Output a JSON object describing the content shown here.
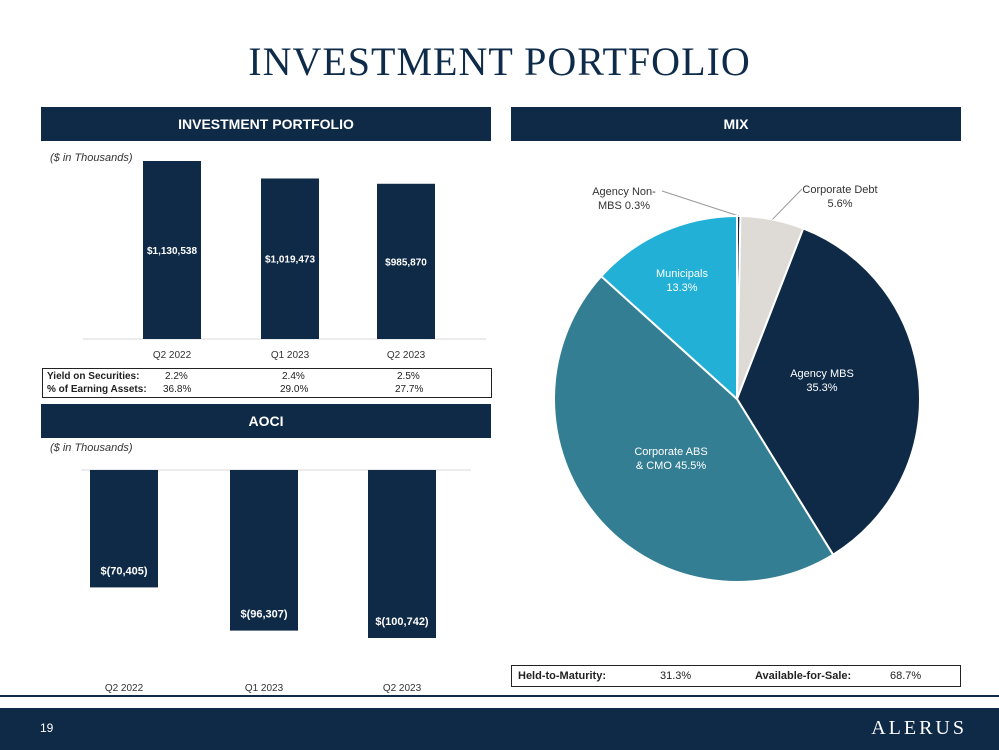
{
  "title": "INVESTMENT PORTFOLIO",
  "portfolio_header": "INVESTMENT PORTFOLIO",
  "mix_header": "MIX",
  "aoci_header": "AOCI",
  "unit_note_portfolio": "($ in Thousands)",
  "unit_note_aoci": "($ in Thousands)",
  "yield_table": {
    "rows": [
      {
        "label": "Yield on Securities:",
        "values": [
          "2.2%",
          "2.4%",
          "2.5%"
        ]
      },
      {
        "label": "% of Earning Assets:",
        "values": [
          "36.8%",
          "29.0%",
          "27.7%"
        ]
      }
    ]
  },
  "htm_afs": {
    "htm_label": "Held-to-Maturity:",
    "htm_value": "31.3%",
    "afs_label": "Available-for-Sale:",
    "afs_value": "68.7%"
  },
  "footer": {
    "page_number": "19",
    "brand": "ALERUS"
  },
  "colors": {
    "navy": "#0e2a47",
    "agency_mbs": "#0e2a47",
    "corporate_abs": "#347e93",
    "municipals": "#22b0d6",
    "agency_non_mbs": "#0e2a47",
    "corporate_debt": "#dedbd6"
  },
  "chart_data": [
    {
      "type": "bar",
      "categories": [
        "Q2 2022",
        "Q1 2023",
        "Q2 2023"
      ],
      "values": [
        1130538,
        1019473,
        985870
      ],
      "labels": [
        "$1,130,538",
        "$1,019,473",
        "$985,870"
      ],
      "ylim": [
        0,
        1130538
      ]
    },
    {
      "type": "bar",
      "categories": [
        "Q2 2022",
        "Q1 2023",
        "Q2 2023"
      ],
      "values": [
        -70405,
        -96307,
        -100742
      ],
      "labels": [
        "$(70,405)",
        "$(96,307)",
        "$(100,742)"
      ],
      "ylim": [
        -100742,
        0
      ]
    },
    {
      "type": "pie",
      "slices": [
        {
          "name": "Agency Non-MBS",
          "value": 0.3,
          "label_lines": [
            "Agency Non-",
            "MBS 0.3%"
          ],
          "color": "#0e2a47"
        },
        {
          "name": "Corporate Debt",
          "value": 5.6,
          "label_lines": [
            "Corporate Debt",
            "5.6%"
          ],
          "color": "#dedbd6"
        },
        {
          "name": "Agency MBS",
          "value": 35.3,
          "label_lines": [
            "Agency MBS",
            "35.3%"
          ],
          "color": "#0e2a47"
        },
        {
          "name": "Corporate ABS & CMO",
          "value": 45.5,
          "label_lines": [
            "Corporate ABS",
            "& CMO 45.5%"
          ],
          "color": "#347e93"
        },
        {
          "name": "Municipals",
          "value": 13.3,
          "label_lines": [
            "Municipals",
            "13.3%"
          ],
          "color": "#22b0d6"
        }
      ]
    }
  ]
}
